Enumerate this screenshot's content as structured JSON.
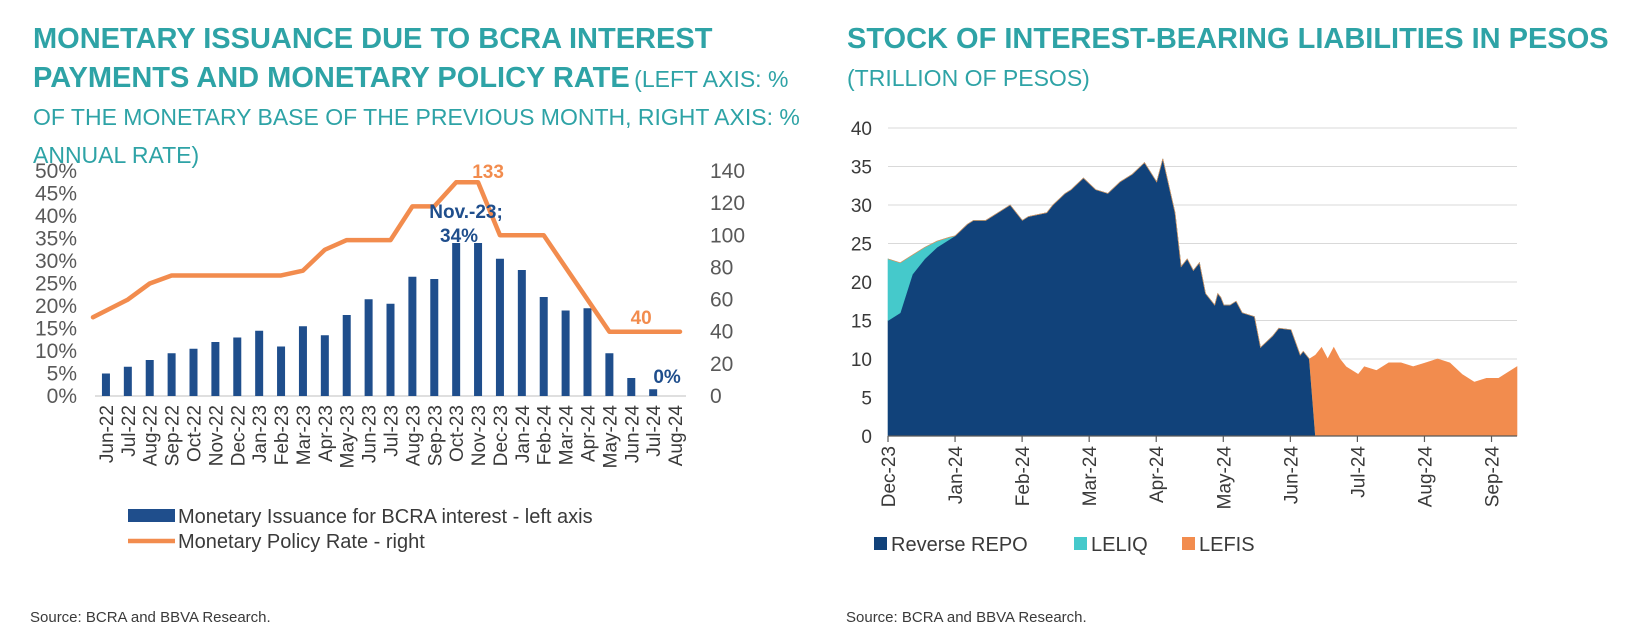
{
  "left_panel": {
    "title_bold": "MONETARY ISSUANCE DUE TO BCRA INTEREST PAYMENTS AND MONETARY POLICY RATE",
    "title_light": "(LEFT AXIS: % OF THE MONETARY BASE OF THE PREVIOUS MONTH, RIGHT AXIS: % ANNUAL RATE)",
    "source": "Source: BCRA and BBVA Research."
  },
  "right_panel": {
    "title_bold": "STOCK OF INTEREST-BEARING LIABILITIES IN PESOS",
    "title_light": "(TRILLION OF PESOS)",
    "source": "Source: BCRA and BBVA Research."
  },
  "colors": {
    "title": "#2ea3a6",
    "bars": "#1f4e8c",
    "policy_rate": "#f28c4e",
    "reverse_repo": "#11427a",
    "leliq": "#45c9cb",
    "lefis": "#f28c4e"
  },
  "chart_data": [
    {
      "type": "bar",
      "title": "MONETARY ISSUANCE DUE TO BCRA INTEREST PAYMENTS AND MONETARY POLICY RATE",
      "categories": [
        "Jun-22",
        "Jul-22",
        "Aug-22",
        "Sep-22",
        "Oct-22",
        "Nov-22",
        "Dec-22",
        "Jan-23",
        "Feb-23",
        "Mar-23",
        "Apr-23",
        "May-23",
        "Jun-23",
        "Jul-23",
        "Aug-23",
        "Sep-23",
        "Oct-23",
        "Nov-23",
        "Dec-23",
        "Jan-24",
        "Feb-24",
        "Mar-24",
        "Apr-24",
        "May-24",
        "Jun-24",
        "Jul-24",
        "Aug-24"
      ],
      "left_axis": {
        "ylim": [
          0,
          50
        ],
        "ticks": [
          "0%",
          "5%",
          "10%",
          "15%",
          "20%",
          "25%",
          "30%",
          "35%",
          "40%",
          "45%",
          "50%"
        ]
      },
      "right_axis": {
        "ylim": [
          0,
          140
        ],
        "ticks": [
          "0",
          "20",
          "40",
          "60",
          "80",
          "100",
          "120",
          "140"
        ]
      },
      "series": [
        {
          "name": "Monetary Issuance for BCRA interest - left axis",
          "kind": "bar",
          "axis": "left",
          "values": [
            5,
            6.5,
            8,
            9.5,
            10.5,
            12,
            13,
            14.5,
            11,
            15.5,
            13.5,
            18,
            21.5,
            20.5,
            26.5,
            26,
            34,
            34,
            30.5,
            28,
            22,
            19,
            19.5,
            9.5,
            4,
            1.5,
            null
          ]
        },
        {
          "name": "Monetary Policy Rate - right",
          "kind": "line",
          "axis": "right",
          "values": [
            49,
            60,
            70,
            75,
            75,
            75,
            75,
            75,
            75,
            78,
            91,
            97,
            97,
            97,
            118,
            118,
            133,
            133,
            100,
            100,
            100,
            80,
            60,
            40,
            40,
            40,
            40
          ]
        }
      ],
      "annotations": [
        {
          "text": "133",
          "category": "Nov-23",
          "series": "Monetary Policy Rate - right"
        },
        {
          "text": "Nov.-23;",
          "category": "Nov-23",
          "series": "Monetary Issuance for BCRA interest - left axis"
        },
        {
          "text": "34%",
          "category": "Nov-23",
          "series": "Monetary Issuance for BCRA interest - left axis"
        },
        {
          "text": "40",
          "category": "Jul-24",
          "series": "Monetary Policy Rate - right"
        },
        {
          "text": "0%",
          "category": "Aug-24",
          "series": "Monetary Issuance for BCRA interest - left axis"
        }
      ]
    },
    {
      "type": "area",
      "stacked": true,
      "title": "STOCK OF INTEREST-BEARING LIABILITIES IN PESOS",
      "ylim": [
        0,
        40
      ],
      "y_ticks": [
        "0",
        "5",
        "10",
        "15",
        "20",
        "25",
        "30",
        "35",
        "40"
      ],
      "x_range": [
        "Dec-23",
        "end Sep-24"
      ],
      "x_tick_labels": [
        "Dec-23",
        "Jan-24",
        "Feb-24",
        "Mar-24",
        "Apr-24",
        "May-24",
        "Jun-24",
        "Jul-24",
        "Aug-24",
        "Sep-24"
      ],
      "grid": true,
      "x": [
        0,
        0.2,
        0.4,
        0.6,
        0.8,
        1.0,
        1.1,
        1.3,
        1.4,
        1.6,
        1.8,
        2.0,
        2.2,
        2.3,
        2.6,
        2.7,
        2.9,
        3.0,
        3.2,
        3.4,
        3.6,
        3.8,
        4.0,
        4.2,
        4.4,
        4.5,
        4.7,
        4.8,
        4.9,
        5.0,
        5.1,
        5.2,
        5.35,
        5.4,
        5.45,
        5.5,
        5.6,
        5.7,
        5.8,
        6.0,
        6.1,
        6.3,
        6.4,
        6.6,
        6.75,
        6.8,
        6.9,
        7.0,
        7.1,
        7.2,
        7.3,
        7.4,
        7.5,
        7.7,
        7.8,
        8.0,
        8.2,
        8.4,
        8.6,
        8.8,
        9.0,
        9.2,
        9.4,
        9.6,
        9.8,
        10.0,
        10.1,
        10.3
      ],
      "series": [
        {
          "name": "Reverse REPO",
          "values": [
            15,
            16,
            21,
            23,
            24.5,
            25.5,
            26,
            27.5,
            28,
            28,
            29,
            30,
            28,
            28.5,
            29,
            30,
            31.5,
            32,
            33.5,
            32,
            31.5,
            33,
            34,
            35.5,
            33,
            36,
            29,
            22,
            23,
            21.5,
            22.5,
            18.5,
            17,
            18.5,
            18,
            17,
            17,
            17.5,
            16,
            15.5,
            11.5,
            13,
            14,
            13.8,
            10.5,
            11,
            10,
            0,
            0,
            0,
            0,
            0,
            0,
            0,
            0,
            0,
            0,
            0,
            0,
            0,
            0,
            0,
            0,
            0,
            0,
            0,
            0,
            0
          ]
        },
        {
          "name": "LELIQ",
          "values": [
            8,
            6.5,
            2.5,
            1.5,
            0.8,
            0.3,
            0,
            0,
            0,
            0,
            0,
            0,
            0,
            0,
            0,
            0,
            0,
            0,
            0,
            0,
            0,
            0,
            0,
            0,
            0,
            0,
            0,
            0,
            0,
            0,
            0,
            0,
            0,
            0,
            0,
            0,
            0,
            0,
            0,
            0,
            0,
            0,
            0,
            0,
            0,
            0,
            0,
            0,
            0,
            0,
            0,
            0,
            0,
            0,
            0,
            0,
            0,
            0,
            0,
            0,
            0,
            0,
            0,
            0,
            0,
            0,
            0,
            0
          ]
        },
        {
          "name": "LEFIS",
          "values": [
            0,
            0,
            0,
            0,
            0,
            0,
            0,
            0,
            0,
            0,
            0,
            0,
            0,
            0,
            0,
            0,
            0,
            0,
            0,
            0,
            0,
            0,
            0,
            0,
            0,
            0,
            0,
            0,
            0,
            0,
            0,
            0,
            0,
            0,
            0,
            0,
            0,
            0,
            0,
            0,
            0,
            0,
            0,
            0,
            0,
            0,
            0,
            10.5,
            11.5,
            10,
            11.5,
            10,
            9,
            8,
            9,
            8.5,
            9.5,
            9.5,
            9,
            9.5,
            10,
            9.5,
            8,
            7,
            7.5,
            7.5,
            8,
            9
          ]
        }
      ]
    }
  ]
}
